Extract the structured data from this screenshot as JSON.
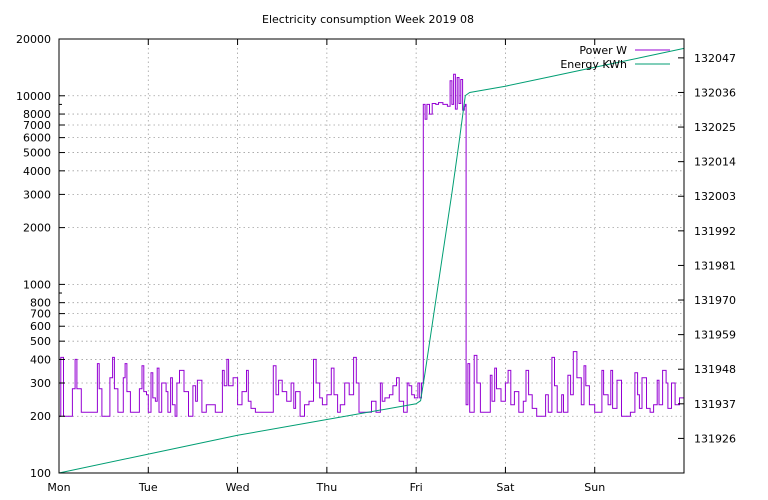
{
  "chart_data": {
    "type": "line",
    "title": "Electricity consumption Week 2019 08",
    "x_ticks": [
      "Mon",
      "Tue",
      "Wed",
      "Thu",
      "Fri",
      "Sat",
      "Sun"
    ],
    "x_range_days": [
      0,
      7
    ],
    "y_left": {
      "scale": "log",
      "range": [
        100,
        20000
      ],
      "ticks": [
        100,
        200,
        300,
        400,
        500,
        600,
        700,
        800,
        1000,
        2000,
        3000,
        4000,
        5000,
        6000,
        7000,
        8000,
        10000,
        20000
      ],
      "tick_labels": [
        "100",
        "200",
        "300",
        "400",
        "500",
        "600",
        "700",
        "800",
        "1000",
        "2000",
        "3000",
        "4000",
        "5000",
        "6000",
        "7000",
        "8000",
        "10000",
        "20000"
      ]
    },
    "y_right": {
      "scale": "linear",
      "range": [
        131915,
        132053
      ],
      "ticks": [
        131926,
        131937,
        131948,
        131959,
        131970,
        131981,
        131992,
        132003,
        132014,
        132025,
        132036,
        132047
      ],
      "tick_labels": [
        "131926",
        "131937",
        "131948",
        "131959",
        "131970",
        "131981",
        "131992",
        "132003",
        "132014",
        "132025",
        "132036",
        "132047"
      ]
    },
    "grid": true,
    "legend_position": "top-right",
    "series": [
      {
        "name": "Power W",
        "axis": "left",
        "color": "#9400d3",
        "points": [
          [
            0.0,
            200
          ],
          [
            0.02,
            410
          ],
          [
            0.05,
            200
          ],
          [
            0.13,
            200
          ],
          [
            0.15,
            280
          ],
          [
            0.18,
            400
          ],
          [
            0.2,
            280
          ],
          [
            0.25,
            210
          ],
          [
            0.33,
            210
          ],
          [
            0.4,
            210
          ],
          [
            0.43,
            380
          ],
          [
            0.45,
            280
          ],
          [
            0.48,
            200
          ],
          [
            0.55,
            200
          ],
          [
            0.57,
            320
          ],
          [
            0.6,
            410
          ],
          [
            0.62,
            280
          ],
          [
            0.66,
            210
          ],
          [
            0.7,
            210
          ],
          [
            0.72,
            320
          ],
          [
            0.74,
            380
          ],
          [
            0.76,
            270
          ],
          [
            0.8,
            210
          ],
          [
            0.88,
            210
          ],
          [
            0.9,
            280
          ],
          [
            0.93,
            370
          ],
          [
            0.95,
            270
          ],
          [
            0.98,
            260
          ],
          [
            1.0,
            210
          ],
          [
            1.03,
            340
          ],
          [
            1.05,
            250
          ],
          [
            1.08,
            240
          ],
          [
            1.1,
            360
          ],
          [
            1.12,
            210
          ],
          [
            1.15,
            300
          ],
          [
            1.2,
            270
          ],
          [
            1.22,
            210
          ],
          [
            1.25,
            320
          ],
          [
            1.27,
            230
          ],
          [
            1.3,
            200
          ],
          [
            1.32,
            300
          ],
          [
            1.35,
            350
          ],
          [
            1.4,
            270
          ],
          [
            1.45,
            200
          ],
          [
            1.5,
            290
          ],
          [
            1.53,
            240
          ],
          [
            1.55,
            310
          ],
          [
            1.6,
            210
          ],
          [
            1.65,
            230
          ],
          [
            1.7,
            230
          ],
          [
            1.75,
            210
          ],
          [
            1.8,
            210
          ],
          [
            1.83,
            350
          ],
          [
            1.85,
            290
          ],
          [
            1.88,
            400
          ],
          [
            1.9,
            290
          ],
          [
            1.95,
            320
          ],
          [
            2.0,
            230
          ],
          [
            2.05,
            270
          ],
          [
            2.1,
            350
          ],
          [
            2.12,
            240
          ],
          [
            2.15,
            220
          ],
          [
            2.2,
            210
          ],
          [
            2.3,
            210
          ],
          [
            2.35,
            210
          ],
          [
            2.4,
            370
          ],
          [
            2.43,
            260
          ],
          [
            2.46,
            310
          ],
          [
            2.5,
            270
          ],
          [
            2.55,
            240
          ],
          [
            2.6,
            300
          ],
          [
            2.63,
            220
          ],
          [
            2.65,
            270
          ],
          [
            2.7,
            200
          ],
          [
            2.75,
            230
          ],
          [
            2.8,
            240
          ],
          [
            2.85,
            400
          ],
          [
            2.88,
            300
          ],
          [
            2.92,
            250
          ],
          [
            2.95,
            230
          ],
          [
            3.0,
            260
          ],
          [
            3.05,
            360
          ],
          [
            3.08,
            260
          ],
          [
            3.12,
            210
          ],
          [
            3.15,
            230
          ],
          [
            3.2,
            300
          ],
          [
            3.25,
            260
          ],
          [
            3.3,
            410
          ],
          [
            3.33,
            300
          ],
          [
            3.36,
            210
          ],
          [
            3.42,
            210
          ],
          [
            3.5,
            240
          ],
          [
            3.55,
            210
          ],
          [
            3.6,
            300
          ],
          [
            3.62,
            240
          ],
          [
            3.65,
            250
          ],
          [
            3.7,
            260
          ],
          [
            3.74,
            290
          ],
          [
            3.78,
            320
          ],
          [
            3.81,
            240
          ],
          [
            3.86,
            210
          ],
          [
            3.9,
            300
          ],
          [
            3.92,
            290
          ],
          [
            3.95,
            260
          ],
          [
            3.98,
            250
          ],
          [
            4.02,
            300
          ],
          [
            4.04,
            250
          ],
          [
            4.06,
            300
          ],
          [
            4.08,
            9000
          ],
          [
            4.1,
            7500
          ],
          [
            4.12,
            9000
          ],
          [
            4.15,
            8000
          ],
          [
            4.18,
            9100
          ],
          [
            4.22,
            9000
          ],
          [
            4.25,
            9200
          ],
          [
            4.3,
            9000
          ],
          [
            4.35,
            8800
          ],
          [
            4.38,
            12000
          ],
          [
            4.4,
            9000
          ],
          [
            4.42,
            13000
          ],
          [
            4.44,
            8500
          ],
          [
            4.46,
            12500
          ],
          [
            4.48,
            9100
          ],
          [
            4.5,
            12200
          ],
          [
            4.52,
            8400
          ],
          [
            4.54,
            8800
          ],
          [
            4.55,
            9000
          ],
          [
            4.56,
            230
          ],
          [
            4.58,
            380
          ],
          [
            4.6,
            210
          ],
          [
            4.65,
            420
          ],
          [
            4.68,
            300
          ],
          [
            4.72,
            210
          ],
          [
            4.8,
            210
          ],
          [
            4.83,
            330
          ],
          [
            4.85,
            240
          ],
          [
            4.88,
            360
          ],
          [
            4.9,
            280
          ],
          [
            4.95,
            240
          ],
          [
            5.0,
            300
          ],
          [
            5.03,
            350
          ],
          [
            5.06,
            230
          ],
          [
            5.1,
            270
          ],
          [
            5.15,
            210
          ],
          [
            5.2,
            240
          ],
          [
            5.23,
            350
          ],
          [
            5.26,
            260
          ],
          [
            5.3,
            220
          ],
          [
            5.35,
            200
          ],
          [
            5.4,
            200
          ],
          [
            5.45,
            260
          ],
          [
            5.48,
            210
          ],
          [
            5.52,
            410
          ],
          [
            5.55,
            290
          ],
          [
            5.58,
            210
          ],
          [
            5.63,
            260
          ],
          [
            5.65,
            210
          ],
          [
            5.7,
            330
          ],
          [
            5.73,
            260
          ],
          [
            5.76,
            440
          ],
          [
            5.8,
            320
          ],
          [
            5.85,
            230
          ],
          [
            5.88,
            370
          ],
          [
            5.9,
            290
          ],
          [
            5.94,
            230
          ],
          [
            6.0,
            210
          ],
          [
            6.05,
            210
          ],
          [
            6.08,
            350
          ],
          [
            6.1,
            260
          ],
          [
            6.15,
            230
          ],
          [
            6.18,
            350
          ],
          [
            6.2,
            220
          ],
          [
            6.25,
            310
          ],
          [
            6.3,
            200
          ],
          [
            6.4,
            210
          ],
          [
            6.45,
            340
          ],
          [
            6.48,
            260
          ],
          [
            6.5,
            220
          ],
          [
            6.53,
            320
          ],
          [
            6.58,
            220
          ],
          [
            6.62,
            210
          ],
          [
            6.66,
            230
          ],
          [
            6.7,
            310
          ],
          [
            6.72,
            230
          ],
          [
            6.76,
            350
          ],
          [
            6.8,
            300
          ],
          [
            6.82,
            220
          ],
          [
            6.86,
            300
          ],
          [
            6.9,
            230
          ],
          [
            6.95,
            250
          ],
          [
            7.0,
            270
          ]
        ]
      },
      {
        "name": "Energy KWh",
        "axis": "right",
        "color": "#009e73",
        "points": [
          [
            0.0,
            131915
          ],
          [
            1.0,
            131921
          ],
          [
            2.0,
            131927
          ],
          [
            3.0,
            131932
          ],
          [
            4.0,
            131937
          ],
          [
            4.05,
            131938
          ],
          [
            4.1,
            131947
          ],
          [
            4.2,
            131966
          ],
          [
            4.3,
            131985
          ],
          [
            4.4,
            132004
          ],
          [
            4.48,
            132020
          ],
          [
            4.55,
            132035
          ],
          [
            4.6,
            132036
          ],
          [
            5.0,
            132038
          ],
          [
            5.5,
            132041
          ],
          [
            6.0,
            132044
          ],
          [
            6.5,
            132047
          ],
          [
            7.0,
            132050
          ]
        ]
      }
    ]
  }
}
